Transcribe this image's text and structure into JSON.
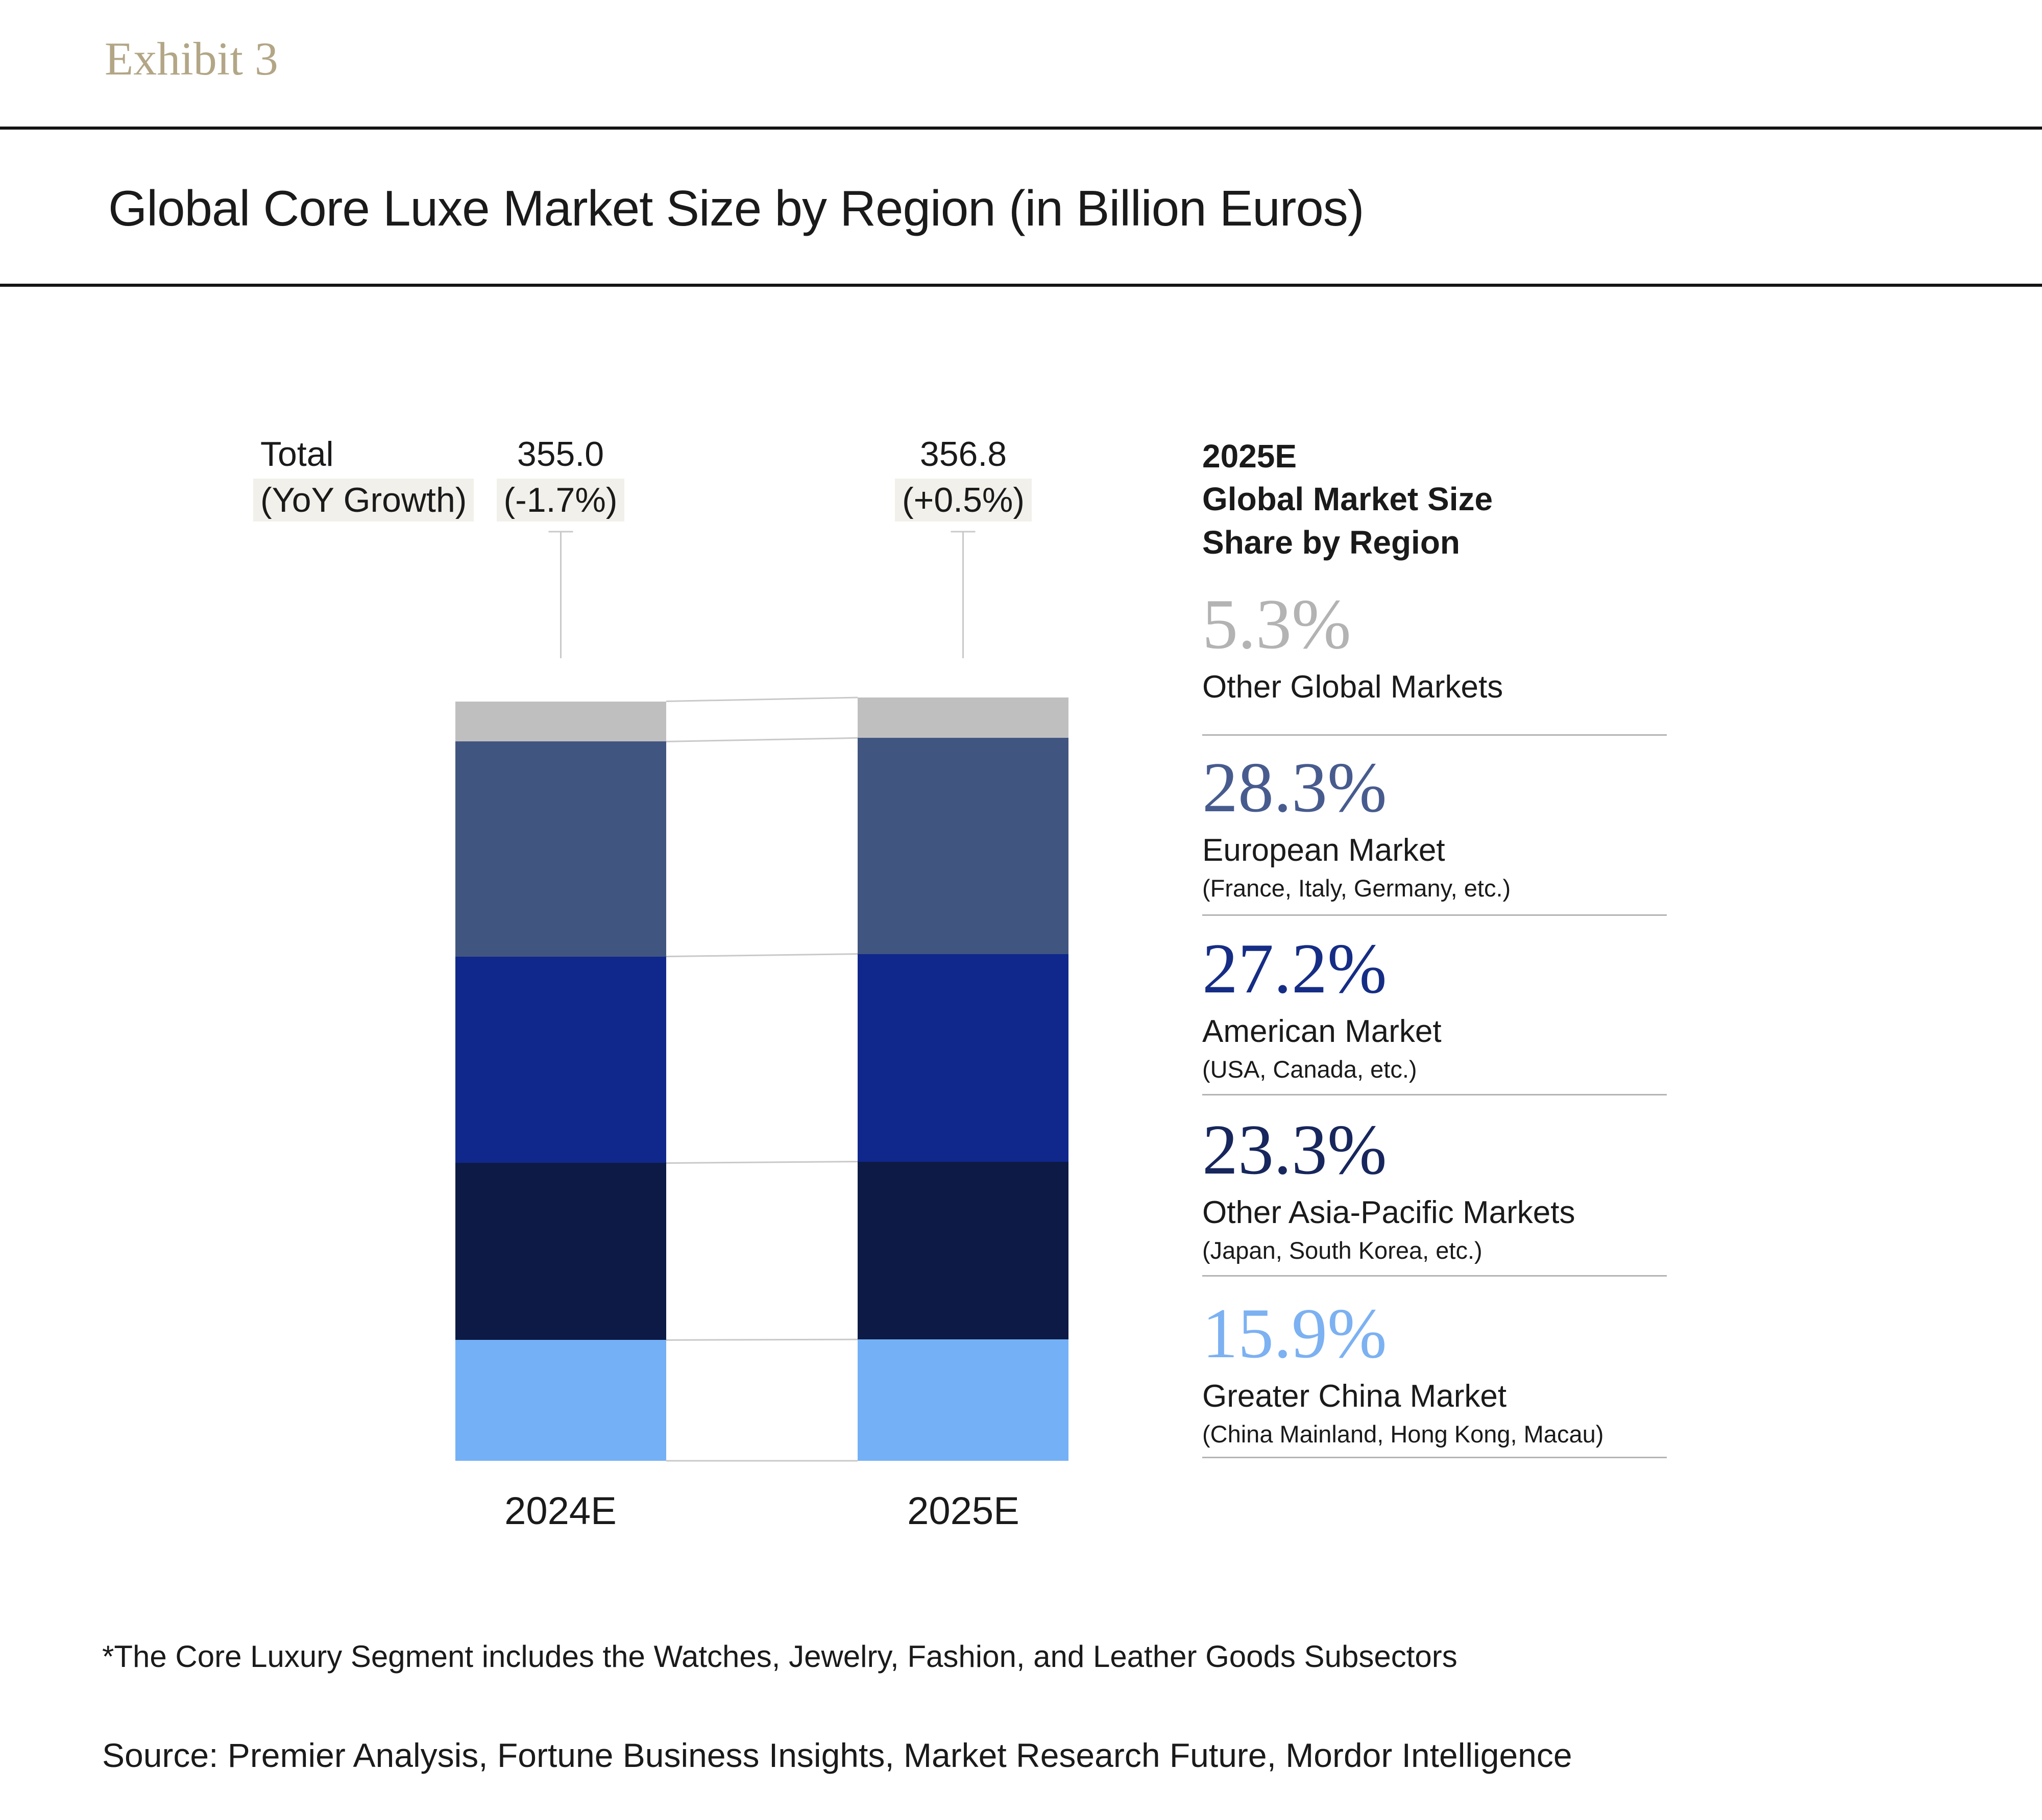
{
  "header": {
    "exhibit": "Exhibit 3",
    "title": "Global Core Luxe Market Size by Region (in Billion Euros)"
  },
  "totals_caption": {
    "line1": "Total",
    "line2": "(YoY Growth)"
  },
  "chart_data": {
    "type": "bar",
    "subtype": "stacked-column",
    "unit": "billion euros",
    "title": "Global Core Luxe Market Size by Region (in Billion Euros)",
    "categories": [
      "2024E",
      "2025E"
    ],
    "totals": [
      355.0,
      356.8
    ],
    "totals_display": [
      "355.0",
      "356.8"
    ],
    "yoy_growth": [
      "(-1.7%)",
      "(+0.5%)"
    ],
    "series_bottom_to_top": [
      {
        "name": "Greater China Market",
        "share_pct_2025": 15.9,
        "color": "#74b0f6"
      },
      {
        "name": "Other Asia-Pacific Markets",
        "share_pct_2025": 23.3,
        "color": "#0c1a45"
      },
      {
        "name": "American Market",
        "share_pct_2025": 27.2,
        "color": "#10288c"
      },
      {
        "name": "European Market",
        "share_pct_2025": 28.3,
        "color": "#415581"
      },
      {
        "name": "Other Global Markets",
        "share_pct_2025": 5.3,
        "color": "#c0bfc0"
      }
    ],
    "legend_position": "right",
    "grid": false,
    "connector_lines_between_bars": true,
    "ylim": [
      0,
      356.8
    ]
  },
  "legend": {
    "header": "2025E\nGlobal Market Size\nShare by Region",
    "items": [
      {
        "value": "5.3%",
        "label": "Other Global Markets",
        "detail": "",
        "color": "#b3b3b3"
      },
      {
        "value": "28.3%",
        "label": "European Market",
        "detail": "(France, Italy, Germany, etc.)",
        "color": "#475b8e"
      },
      {
        "value": "27.2%",
        "label": "American Market",
        "detail": "(USA, Canada, etc.)",
        "color": "#152d85"
      },
      {
        "value": "23.3%",
        "label": "Other Asia-Pacific Markets",
        "detail": "(Japan, South Korea, etc.)",
        "color": "#17265c"
      },
      {
        "value": "15.9%",
        "label": "Greater China Market",
        "detail": "(China Mainland, Hong Kong, Macau)",
        "color": "#7cb1f2"
      }
    ]
  },
  "footnote": "*The Core Luxury Segment includes the Watches, Jewelry, Fashion, and Leather Goods Subsectors",
  "source": "Source: Premier Analysis, Fortune Business Insights, Market Research Future, Mordor Intelligence"
}
